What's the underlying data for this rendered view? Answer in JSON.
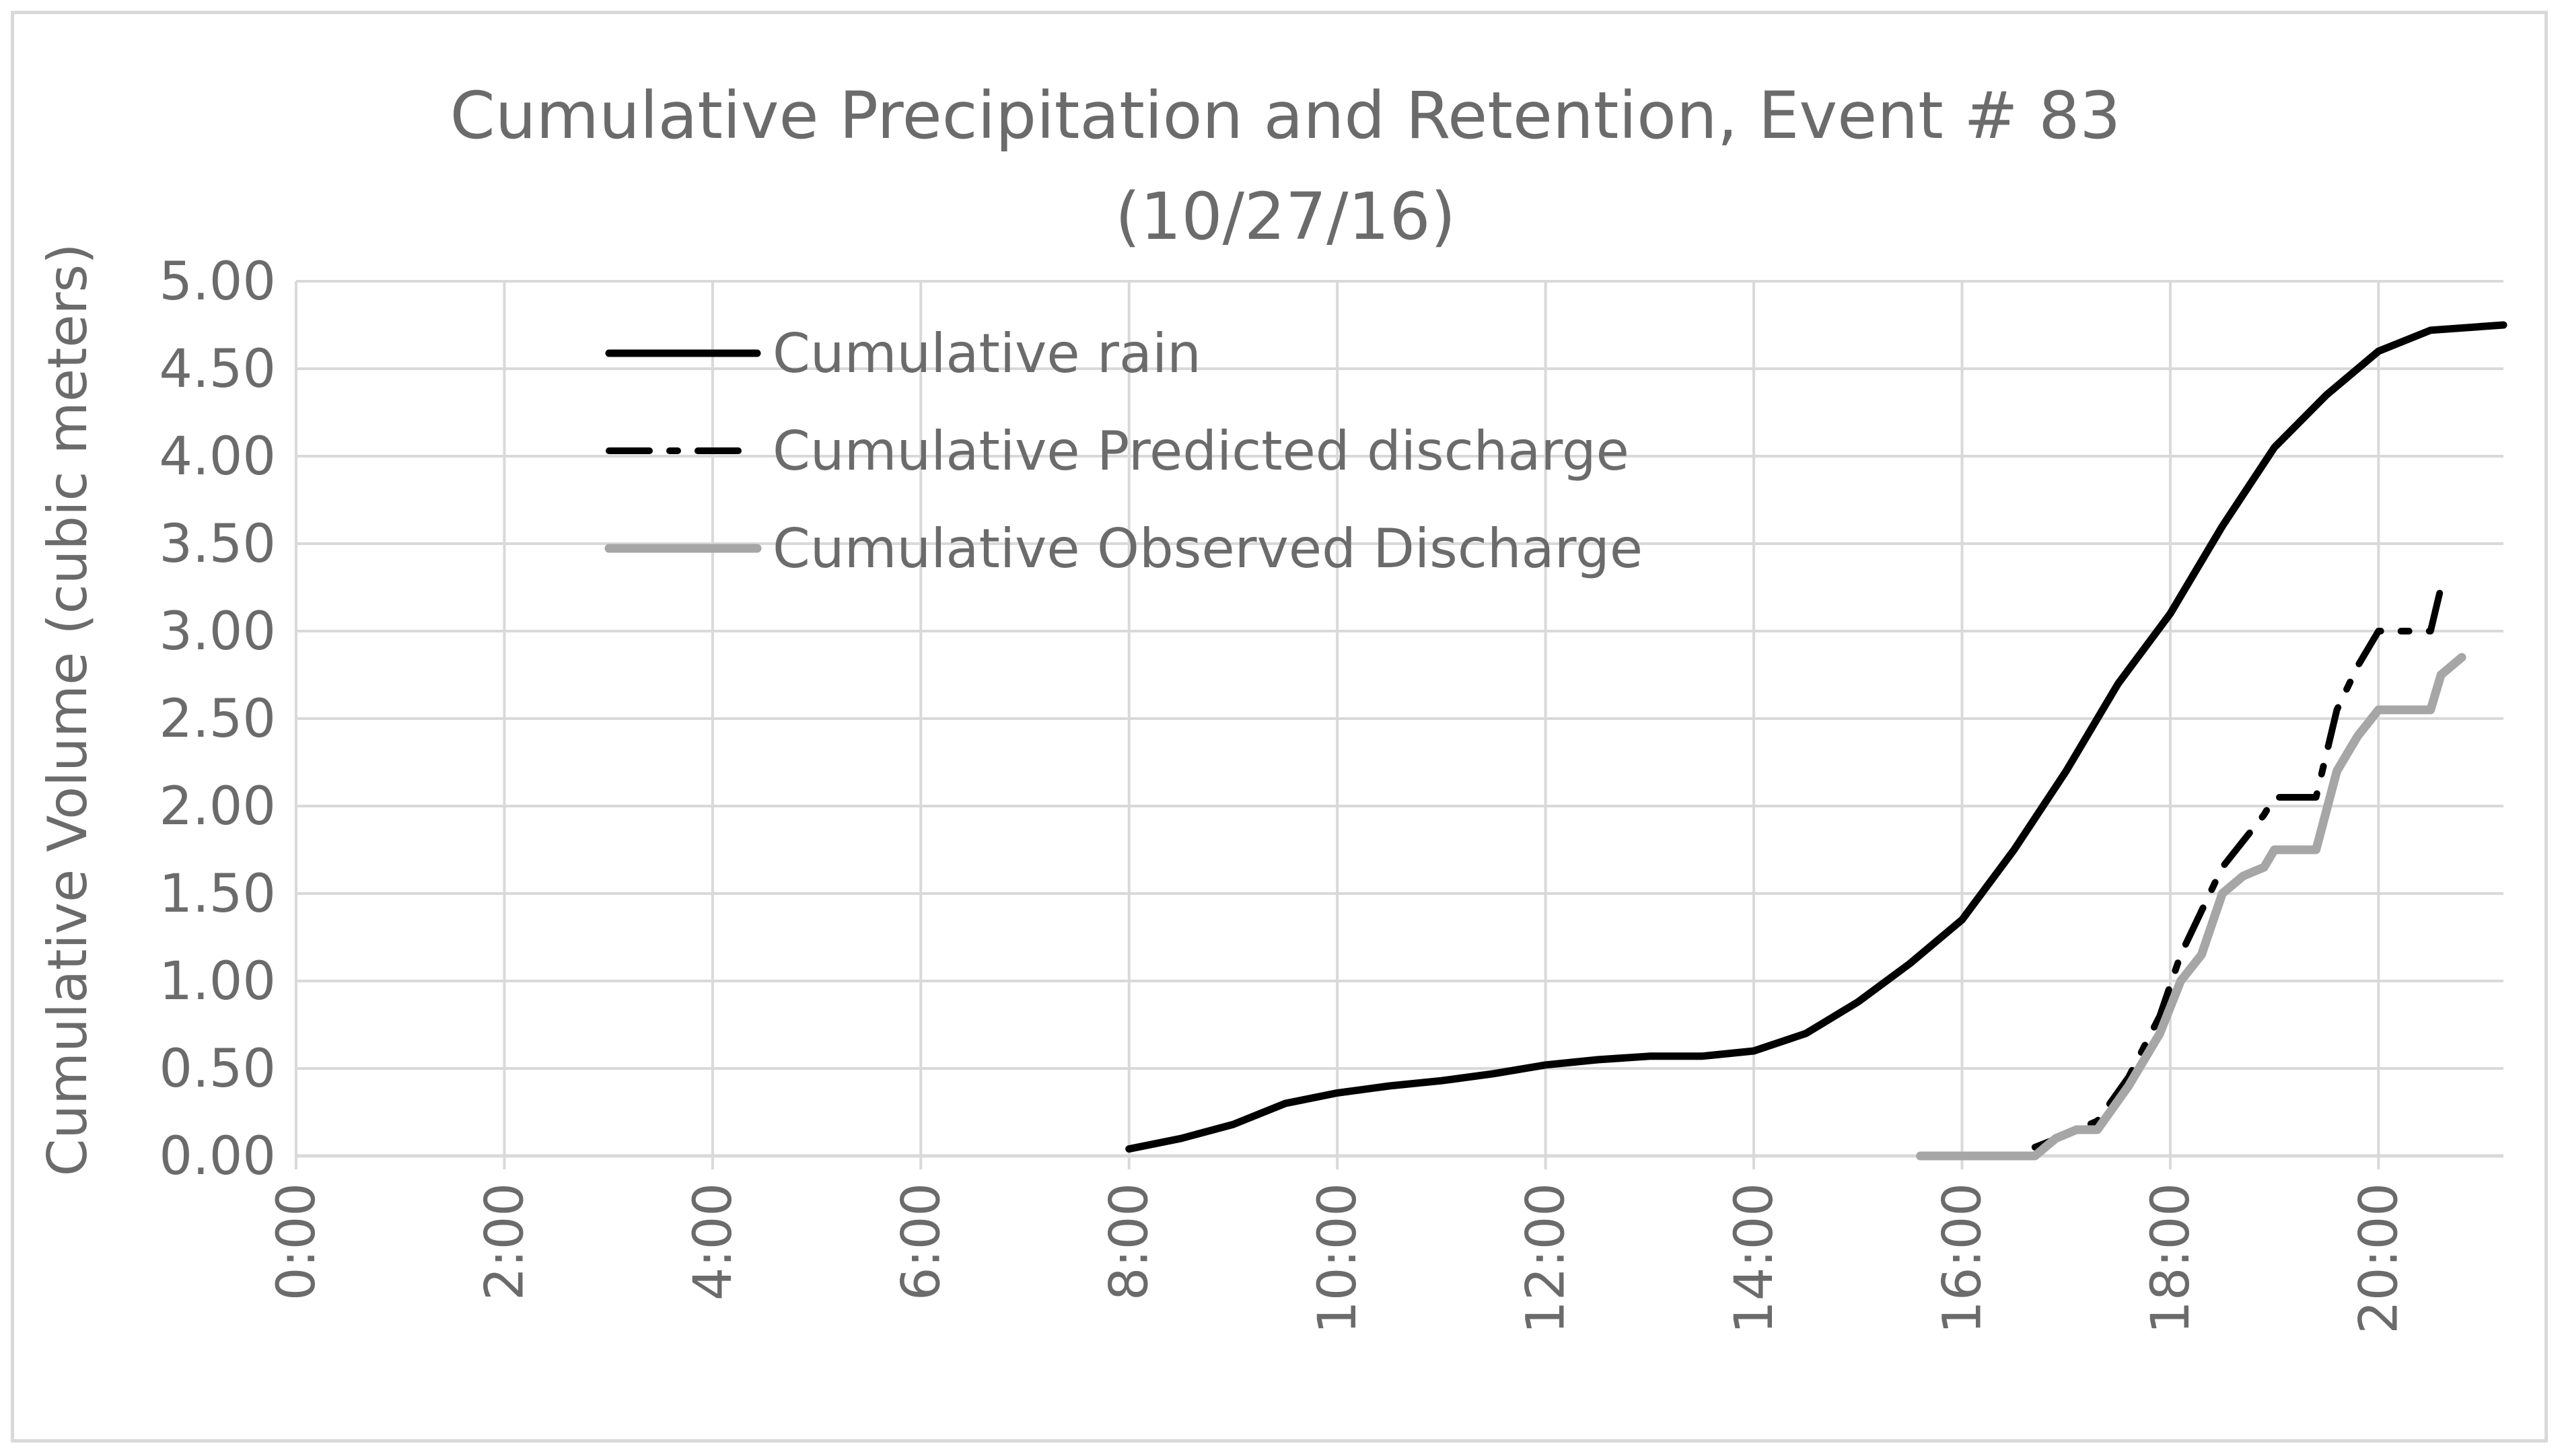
{
  "chart_data": {
    "type": "line",
    "title_lines": [
      "Cumulative Precipitation and Retention, Event # 83",
      "(10/27/16)"
    ],
    "xlabel": "",
    "ylabel": "Cumulative Volume (cubic meters)",
    "xlim": [
      0,
      21.2
    ],
    "ylim": [
      0,
      5
    ],
    "x_tick_values": [
      0,
      2,
      4,
      6,
      8,
      10,
      12,
      14,
      16,
      18,
      20
    ],
    "x_tick_labels": [
      "0:00",
      "2:00",
      "4:00",
      "6:00",
      "8:00",
      "10:00",
      "12:00",
      "14:00",
      "16:00",
      "18:00",
      "20:00"
    ],
    "y_tick_values": [
      0,
      0.5,
      1,
      1.5,
      2,
      2.5,
      3,
      3.5,
      4,
      4.5,
      5
    ],
    "y_tick_labels": [
      "0.00",
      "0.50",
      "1.00",
      "1.50",
      "2.00",
      "2.50",
      "3.00",
      "3.50",
      "4.00",
      "4.50",
      "5.00"
    ],
    "grid": true,
    "legend_position": "top-left",
    "series": [
      {
        "name": "Cumulative rain",
        "color": "#000000",
        "style": "solid",
        "x": [
          8,
          8.5,
          9,
          9.5,
          10,
          10.5,
          11,
          11.5,
          12,
          12.5,
          13,
          13.5,
          14,
          14.5,
          15,
          15.5,
          16,
          16.5,
          17,
          17.5,
          18,
          18.5,
          19,
          19.5,
          20,
          20.5,
          21.2
        ],
        "y": [
          0.04,
          0.1,
          0.18,
          0.3,
          0.36,
          0.4,
          0.43,
          0.47,
          0.52,
          0.55,
          0.57,
          0.57,
          0.6,
          0.7,
          0.88,
          1.1,
          1.35,
          1.75,
          2.2,
          2.7,
          3.1,
          3.6,
          4.05,
          4.35,
          4.6,
          4.72,
          4.75
        ]
      },
      {
        "name": "Cumulative Predicted discharge",
        "color": "#000000",
        "style": "dashdot",
        "x": [
          16.7,
          17.0,
          17.3,
          17.6,
          17.9,
          18.1,
          18.3,
          18.5,
          18.7,
          18.9,
          19.0,
          19.2,
          19.4,
          19.6,
          19.8,
          20.0,
          20.3,
          20.5,
          20.6
        ],
        "y": [
          0.05,
          0.12,
          0.2,
          0.45,
          0.8,
          1.15,
          1.4,
          1.65,
          1.8,
          1.95,
          2.05,
          2.05,
          2.05,
          2.55,
          2.8,
          3.0,
          3.0,
          3.0,
          3.25
        ]
      },
      {
        "name": "Cumulative Observed Discharge",
        "color": "#a6a6a6",
        "style": "solid",
        "x": [
          15.6,
          16.0,
          16.4,
          16.7,
          16.9,
          17.1,
          17.3,
          17.6,
          17.9,
          18.1,
          18.3,
          18.5,
          18.7,
          18.9,
          19.0,
          19.2,
          19.4,
          19.6,
          19.8,
          20.0,
          20.2,
          20.5,
          20.6,
          20.8
        ],
        "y": [
          0,
          0,
          0,
          0,
          0.1,
          0.15,
          0.15,
          0.4,
          0.7,
          1.0,
          1.15,
          1.5,
          1.6,
          1.65,
          1.75,
          1.75,
          1.75,
          2.2,
          2.4,
          2.55,
          2.55,
          2.55,
          2.75,
          2.85
        ]
      }
    ]
  }
}
